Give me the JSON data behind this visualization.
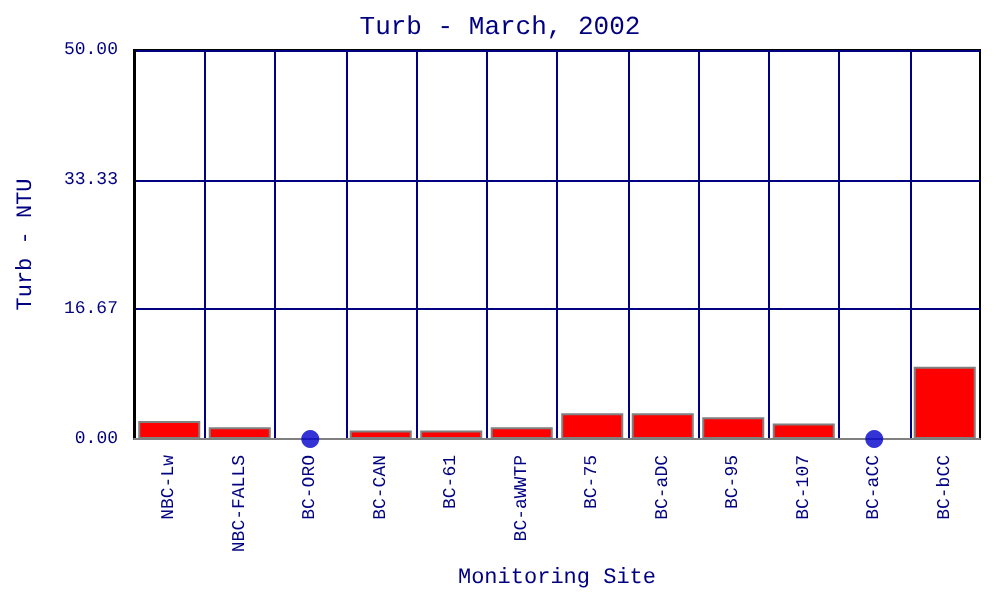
{
  "chart_data": {
    "type": "bar",
    "title": "Turb - March, 2002",
    "xlabel": "Monitoring Site",
    "ylabel": "Turb - NTU",
    "categories": [
      "NBC-Lw",
      "NBC-FALLS",
      "BC-ORO",
      "BC-CAN",
      "BC-61",
      "BC-aWWTP",
      "BC-75",
      "BC-aDC",
      "BC-95",
      "BC-107",
      "BC-aCC",
      "BC-bCC"
    ],
    "series": [
      {
        "color": "#ff0000",
        "values": [
          2.3,
          1.5,
          null,
          1.1,
          1.1,
          1.5,
          3.3,
          3.3,
          2.8,
          2.0,
          null,
          9.3
        ]
      },
      {
        "type": "scatter",
        "color": "#0000cc",
        "x": [
          "BC-ORO",
          "BC-aCC"
        ],
        "values": [
          0,
          0
        ]
      }
    ],
    "ylim": [
      0,
      50
    ],
    "yticks": [
      {
        "value": 0,
        "label": "0.00"
      },
      {
        "value": 16.67,
        "label": "16.67"
      },
      {
        "value": 33.33,
        "label": "33.33"
      },
      {
        "value": 50,
        "label": "50.00"
      }
    ],
    "grid": true,
    "marker": "circle"
  }
}
